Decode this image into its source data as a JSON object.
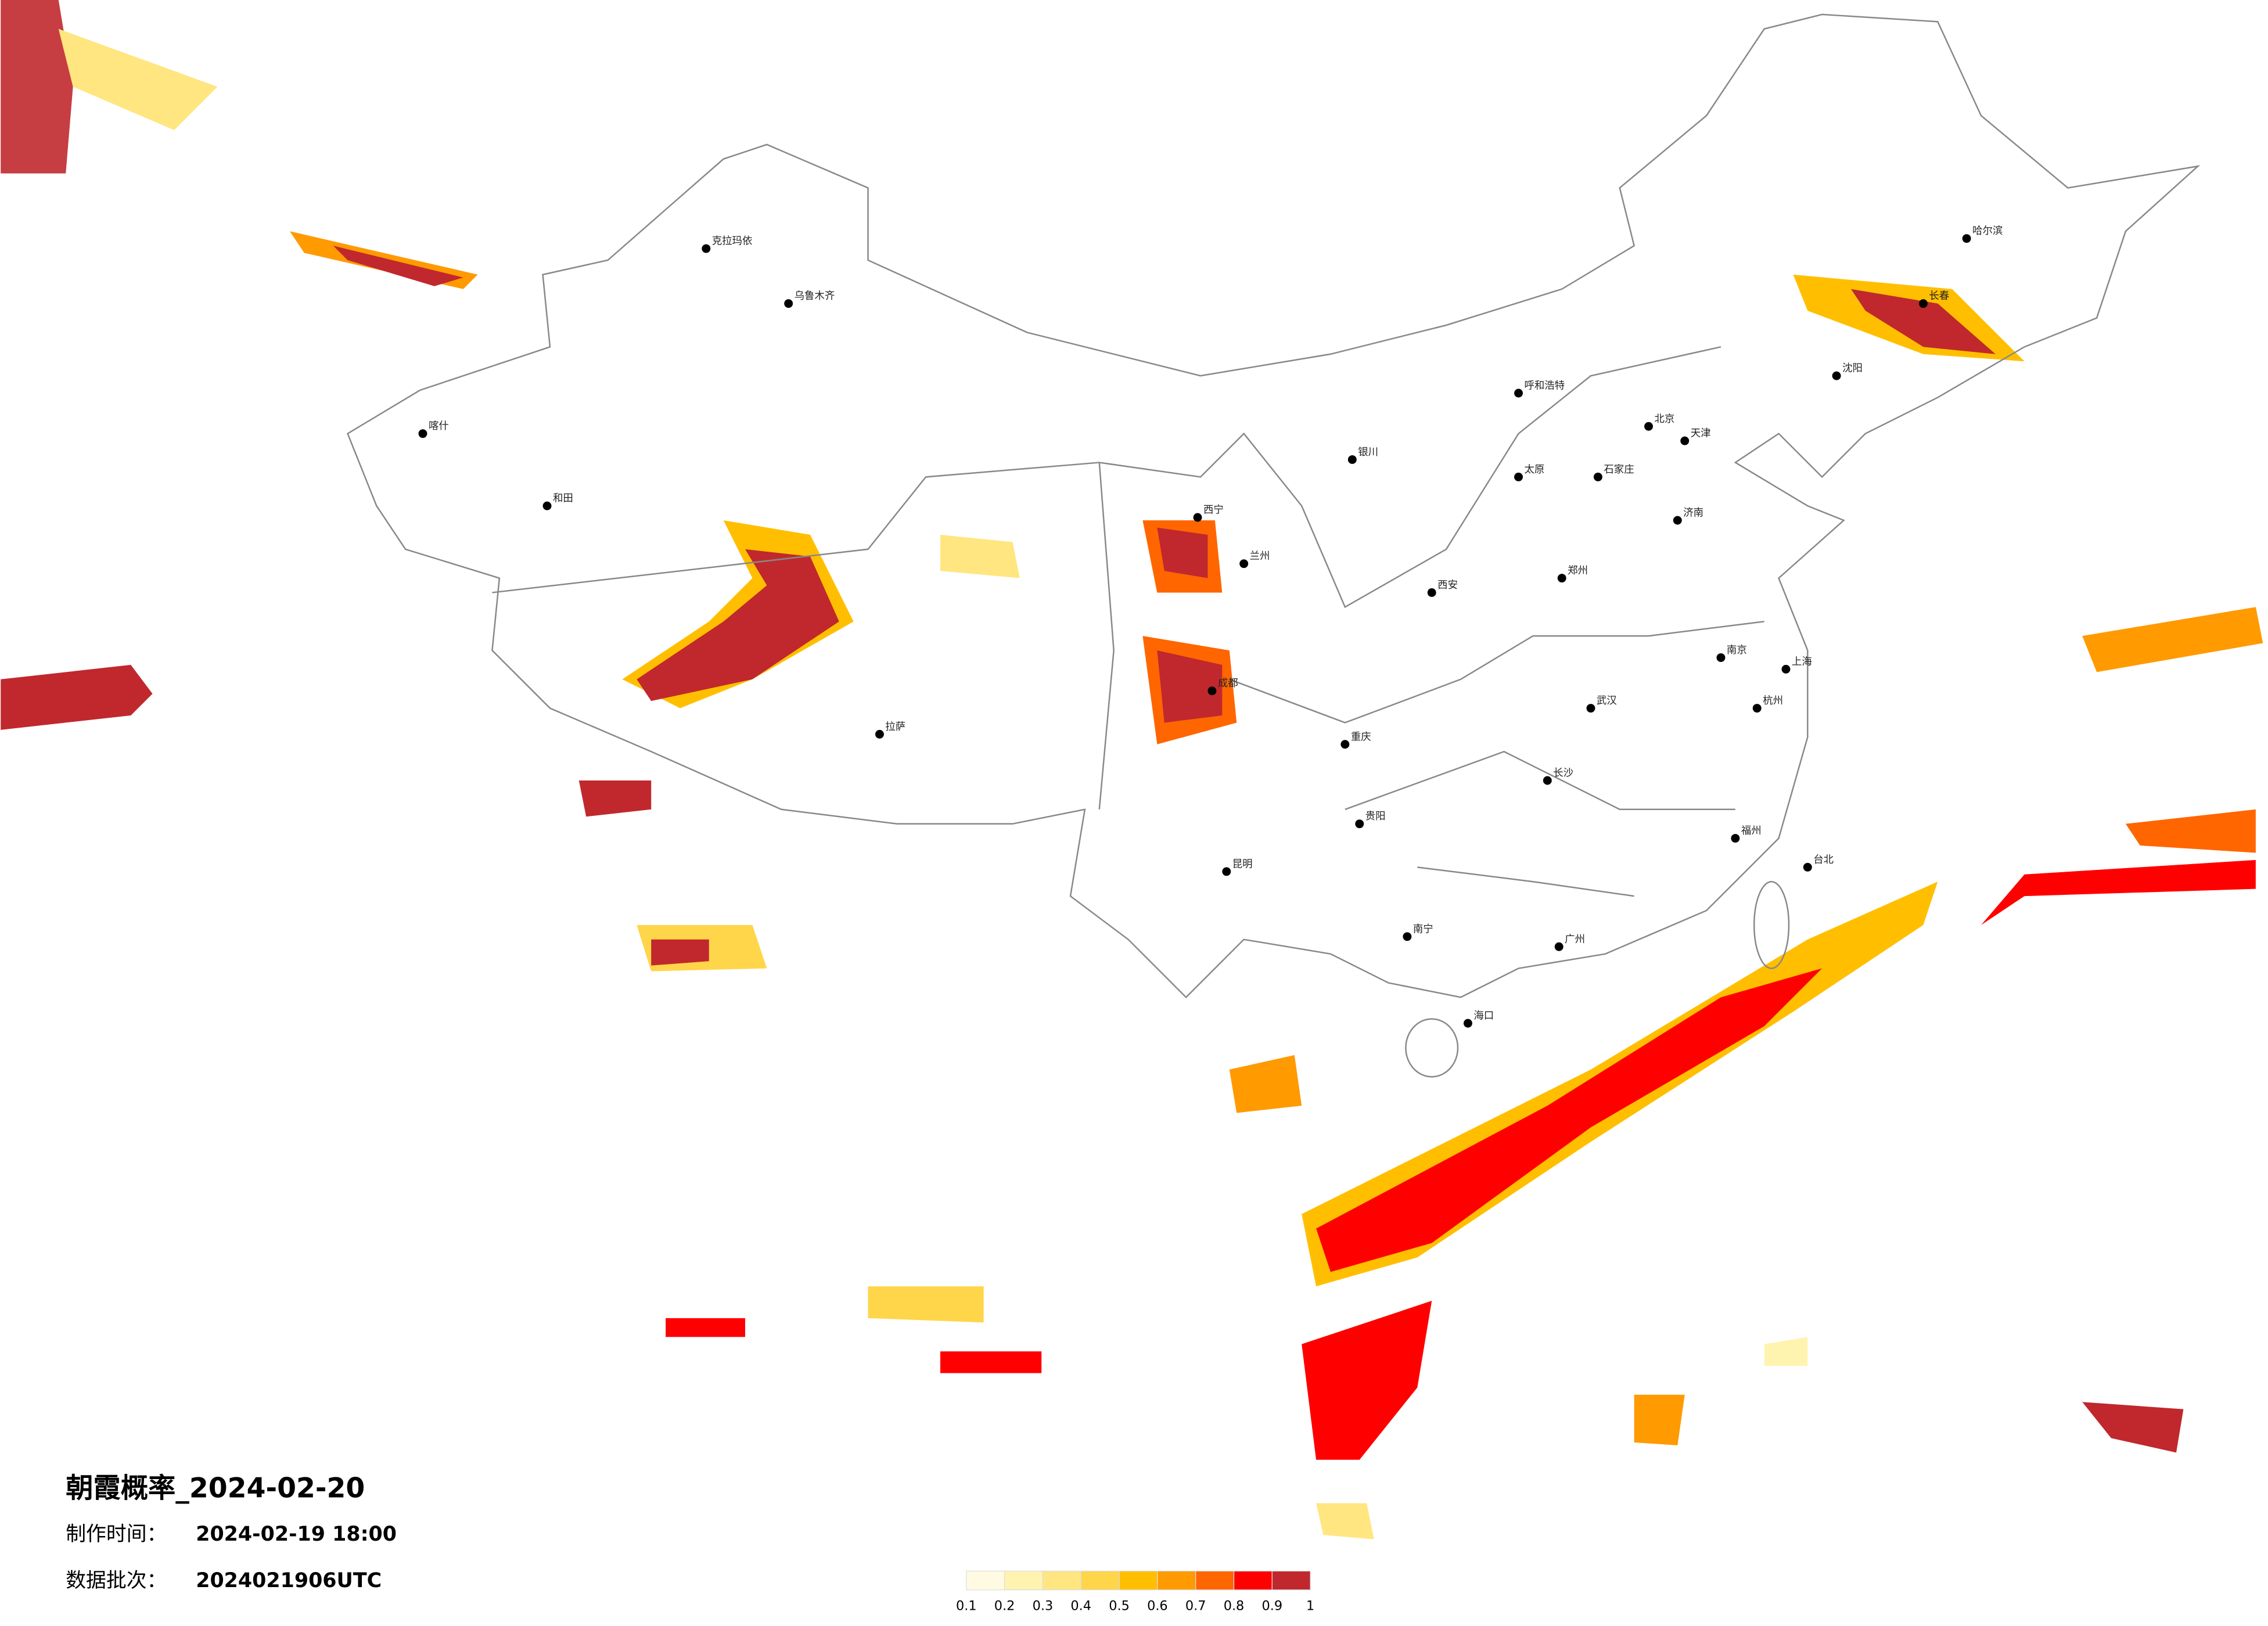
{
  "title": "朝霞概率_2024-02-20",
  "made_label": "制作时间：",
  "made_time": "2024-02-19 18:00",
  "batch_label": "数据批次：",
  "batch": "2024021906UTC",
  "legend": {
    "colors": [
      "#fffbe3",
      "#fff3b0",
      "#ffe680",
      "#ffd54a",
      "#ffbf00",
      "#ff9a00",
      "#ff6600",
      "#ff0000",
      "#c0282d"
    ],
    "ticks": [
      0.1,
      0.2,
      0.3,
      0.4,
      0.5,
      0.6,
      0.7,
      0.8,
      0.9,
      1
    ]
  },
  "cities": [
    "乌鲁木齐",
    "克拉玛依",
    "喀什",
    "和田",
    "拉萨",
    "西宁",
    "兰州",
    "成都",
    "重庆",
    "昆明",
    "贵阳",
    "南宁",
    "广州",
    "长沙",
    "武汉",
    "南京",
    "上海",
    "杭州",
    "福州",
    "济南",
    "郑州",
    "西安",
    "太原",
    "石家庄",
    "北京",
    "天津",
    "呼和浩特",
    "沈阳",
    "长春",
    "哈尔滨",
    "海口",
    "台北",
    "银川"
  ]
}
